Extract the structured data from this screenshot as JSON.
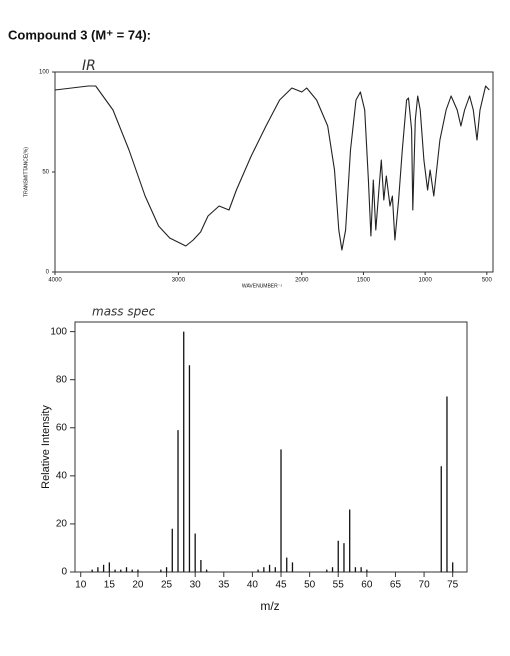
{
  "title": "Compound 3 (M⁺ = 74):",
  "chart_data": [
    {
      "type": "line",
      "annotation": "IR",
      "x_label": "WAVENUMBER⁻¹",
      "y_label": "TRANSMITTANCE(%)",
      "xlim": [
        4000,
        450
      ],
      "ylim": [
        0,
        100
      ],
      "xticks": [
        4000,
        3000,
        2000,
        1500,
        1000,
        500
      ],
      "yticks": [
        0,
        50,
        100
      ],
      "color": "#222222",
      "x": [
        4000,
        3730,
        3670,
        3530,
        3400,
        3270,
        3160,
        3070,
        2940,
        2880,
        2820,
        2760,
        2670,
        2590,
        2530,
        2410,
        2290,
        2180,
        2080,
        2000,
        1960,
        1880,
        1790,
        1735,
        1700,
        1675,
        1645,
        1605,
        1560,
        1525,
        1490,
        1460,
        1440,
        1420,
        1400,
        1375,
        1355,
        1335,
        1315,
        1285,
        1265,
        1245,
        1215,
        1185,
        1150,
        1135,
        1110,
        1100,
        1080,
        1060,
        1040,
        1010,
        980,
        960,
        930,
        880,
        830,
        790,
        740,
        710,
        680,
        640,
        610,
        580,
        555,
        510,
        480
      ],
      "values": [
        91,
        93,
        93,
        81,
        61,
        38,
        23,
        17,
        13,
        16,
        20,
        28,
        33,
        31,
        41,
        58,
        73,
        86,
        92,
        90,
        92,
        86,
        73,
        51,
        21,
        11,
        21,
        61,
        86,
        90,
        81,
        46,
        18,
        46,
        21,
        41,
        56,
        36,
        48,
        33,
        38,
        16,
        36,
        61,
        86,
        87,
        71,
        31,
        76,
        88,
        81,
        56,
        41,
        51,
        38,
        66,
        81,
        88,
        81,
        73,
        81,
        88,
        81,
        66,
        81,
        93,
        91
      ]
    },
    {
      "type": "bar",
      "annotation": "mass spec",
      "x_label": "m/z",
      "y_label": "Relative Intensity",
      "xlim": [
        9,
        77.5
      ],
      "ylim": [
        0,
        104
      ],
      "xticks": [
        10,
        15,
        20,
        25,
        30,
        35,
        40,
        45,
        50,
        55,
        60,
        65,
        70,
        75
      ],
      "yticks": [
        0,
        20,
        40,
        60,
        80,
        100
      ],
      "color": "#111111",
      "x": [
        12,
        13,
        14,
        15,
        16,
        17,
        18,
        19,
        20,
        24,
        25,
        26,
        27,
        28,
        29,
        30,
        31,
        32,
        41,
        42,
        43,
        44,
        45,
        46,
        47,
        53,
        54,
        55,
        56,
        57,
        58,
        59,
        60,
        73,
        74,
        75
      ],
      "values": [
        1,
        2,
        3,
        4,
        1,
        1,
        2,
        1,
        1,
        1,
        2,
        18,
        59,
        100,
        86,
        16,
        5,
        1,
        1,
        2,
        3,
        2,
        51,
        6,
        4,
        1,
        2,
        13,
        12,
        26,
        2,
        2,
        1,
        44,
        73,
        4
      ]
    }
  ]
}
